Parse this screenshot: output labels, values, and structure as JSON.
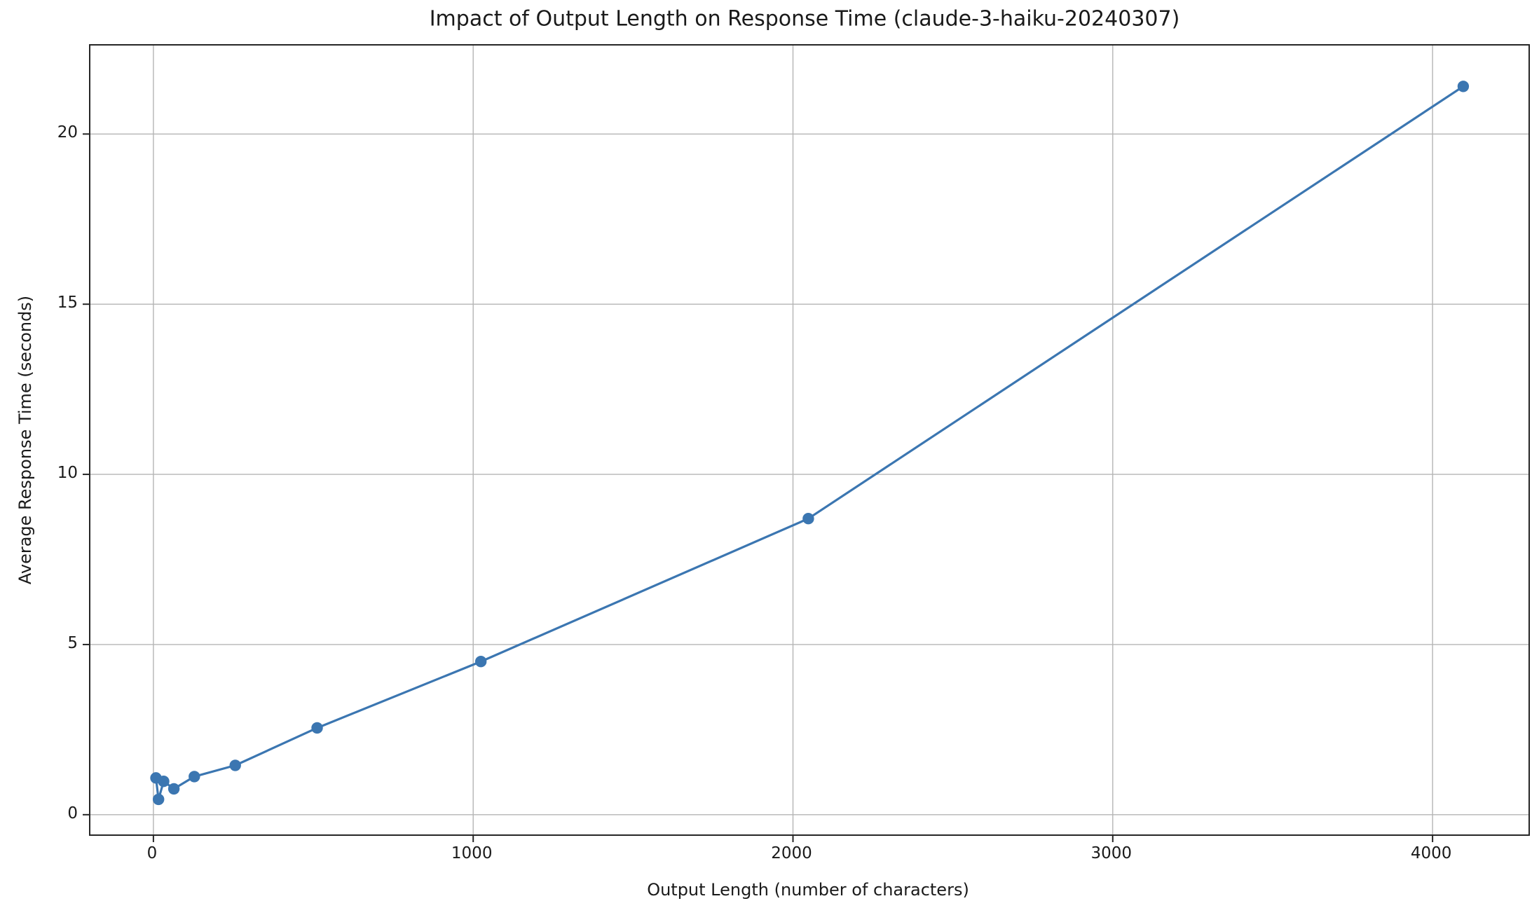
{
  "title": "Impact of Output Length on Response Time (claude-3-haiku-20240307)",
  "chart_data": {
    "type": "line",
    "title": "Impact of Output Length on Response Time (claude-3-haiku-20240307)",
    "xlabel": "Output Length (number of characters)",
    "ylabel": "Average Response Time (seconds)",
    "series": [
      {
        "name": "average response time",
        "x": [
          8,
          16,
          32,
          64,
          128,
          256,
          512,
          1024,
          2048,
          4096
        ],
        "y": [
          1.08,
          0.45,
          0.98,
          0.76,
          1.12,
          1.45,
          2.55,
          4.5,
          8.7,
          21.4
        ]
      }
    ],
    "xticks": [
      0,
      1000,
      2000,
      3000,
      4000
    ],
    "yticks": [
      0,
      5,
      10,
      15,
      20
    ],
    "xlim": [
      -197,
      4300
    ],
    "ylim": [
      -0.58,
      22.6
    ],
    "grid": true,
    "legend": "none",
    "line_color": "#3b76b1",
    "marker": "circle",
    "marker_radius": 8.2,
    "line_width": 3.2,
    "grid_color": "#b5b5b5",
    "tick_color": "#262626",
    "text_color": "#1a1a1a",
    "background_color": "#ffffff"
  }
}
